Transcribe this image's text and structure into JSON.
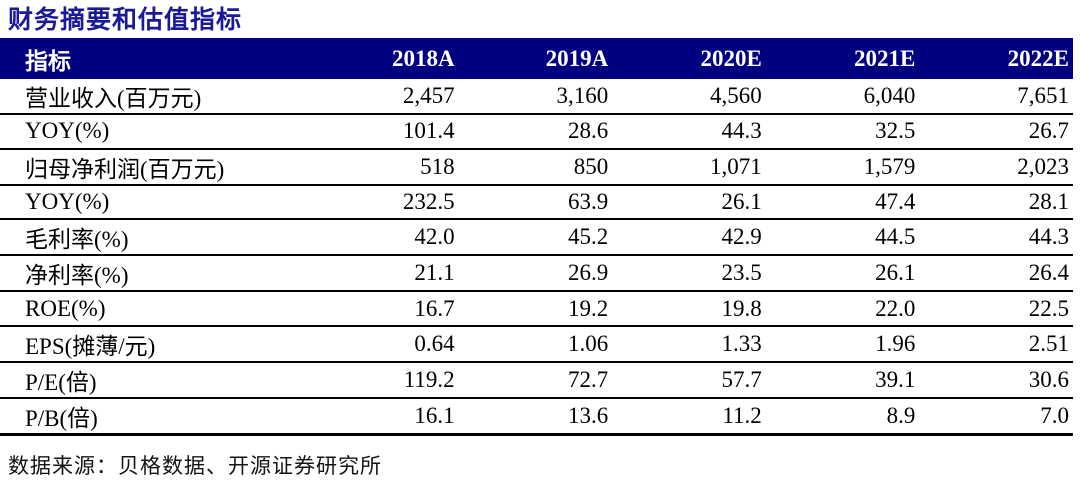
{
  "title": "财务摘要和估值指标",
  "colors": {
    "header_bg": "#000080",
    "title_blue": "#1a1a96",
    "row_text": "#000000"
  },
  "table": {
    "header": {
      "label": "指标",
      "years": [
        "2018A",
        "2019A",
        "2020E",
        "2021E",
        "2022E"
      ]
    },
    "rows": [
      {
        "label": "营业收入(百万元)",
        "values": [
          "2,457",
          "3,160",
          "4,560",
          "6,040",
          "7,651"
        ]
      },
      {
        "label": "YOY(%)",
        "values": [
          "101.4",
          "28.6",
          "44.3",
          "32.5",
          "26.7"
        ]
      },
      {
        "label": "归母净利润(百万元)",
        "values": [
          "518",
          "850",
          "1,071",
          "1,579",
          "2,023"
        ]
      },
      {
        "label": "YOY(%)",
        "values": [
          "232.5",
          "63.9",
          "26.1",
          "47.4",
          "28.1"
        ]
      },
      {
        "label": "毛利率(%)",
        "values": [
          "42.0",
          "45.2",
          "42.9",
          "44.5",
          "44.3"
        ]
      },
      {
        "label": "净利率(%)",
        "values": [
          "21.1",
          "26.9",
          "23.5",
          "26.1",
          "26.4"
        ]
      },
      {
        "label": "ROE(%)",
        "values": [
          "16.7",
          "19.2",
          "19.8",
          "22.0",
          "22.5"
        ]
      },
      {
        "label": "EPS(摊薄/元)",
        "values": [
          "0.64",
          "1.06",
          "1.33",
          "1.96",
          "2.51"
        ]
      },
      {
        "label": "P/E(倍)",
        "values": [
          "119.2",
          "72.7",
          "57.7",
          "39.1",
          "30.6"
        ]
      },
      {
        "label": "P/B(倍)",
        "values": [
          "16.1",
          "13.6",
          "11.2",
          "8.9",
          "7.0"
        ]
      }
    ]
  },
  "source_note": "数据来源：贝格数据、开源证券研究所"
}
